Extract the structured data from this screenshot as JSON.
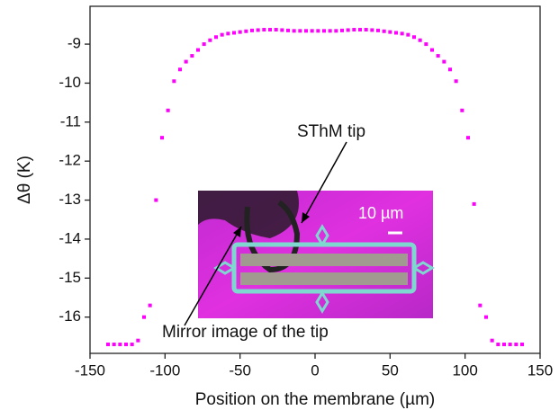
{
  "chart_data": {
    "type": "scatter",
    "xlabel": "Position on the membrane (µm)",
    "ylabel": "Δθ (K)",
    "annotations": [
      "SThM tip",
      "Mirror image of the tip",
      "10 µm"
    ],
    "color": "#ff00ff",
    "x": [
      -138,
      -134,
      -130,
      -126,
      -122,
      -118,
      -114,
      -110,
      -106,
      -102,
      -98,
      -94,
      -90,
      -86,
      -82,
      -78,
      -74,
      -70,
      -66,
      -62,
      -58,
      -54,
      -50,
      -46,
      -42,
      -38,
      -34,
      -30,
      -26,
      -22,
      -18,
      -14,
      -10,
      -6,
      -2,
      2,
      6,
      10,
      14,
      18,
      22,
      26,
      30,
      34,
      38,
      42,
      46,
      50,
      54,
      58,
      62,
      66,
      70,
      74,
      78,
      82,
      86,
      90,
      94,
      98,
      102,
      106,
      110,
      114,
      118,
      122,
      126,
      130,
      134,
      138
    ],
    "values": [
      -16.7,
      -16.7,
      -16.7,
      -16.7,
      -16.7,
      -16.6,
      -16.0,
      -15.7,
      -13.0,
      -11.4,
      -10.7,
      -9.95,
      -9.65,
      -9.45,
      -9.3,
      -9.15,
      -9.0,
      -8.9,
      -8.82,
      -8.76,
      -8.73,
      -8.71,
      -8.69,
      -8.67,
      -8.65,
      -8.64,
      -8.63,
      -8.63,
      -8.63,
      -8.64,
      -8.65,
      -8.66,
      -8.66,
      -8.66,
      -8.66,
      -8.66,
      -8.66,
      -8.66,
      -8.66,
      -8.65,
      -8.64,
      -8.63,
      -8.63,
      -8.63,
      -8.64,
      -8.65,
      -8.67,
      -8.69,
      -8.71,
      -8.73,
      -8.76,
      -8.82,
      -8.9,
      -9.0,
      -9.15,
      -9.3,
      -9.45,
      -9.65,
      -9.95,
      -10.7,
      -11.4,
      -13.1,
      -15.7,
      -16.0,
      -16.6,
      -16.7,
      -16.7,
      -16.7,
      -16.7,
      -16.7
    ],
    "xlim": [
      -150,
      150
    ],
    "xticks": [
      -150,
      -100,
      -50,
      0,
      50,
      100,
      150
    ],
    "ylim": [
      -16.93,
      -8.03
    ],
    "yticks": [
      -16,
      -15,
      -14,
      -13,
      -12,
      -11,
      -10,
      -9
    ],
    "grid": false
  }
}
